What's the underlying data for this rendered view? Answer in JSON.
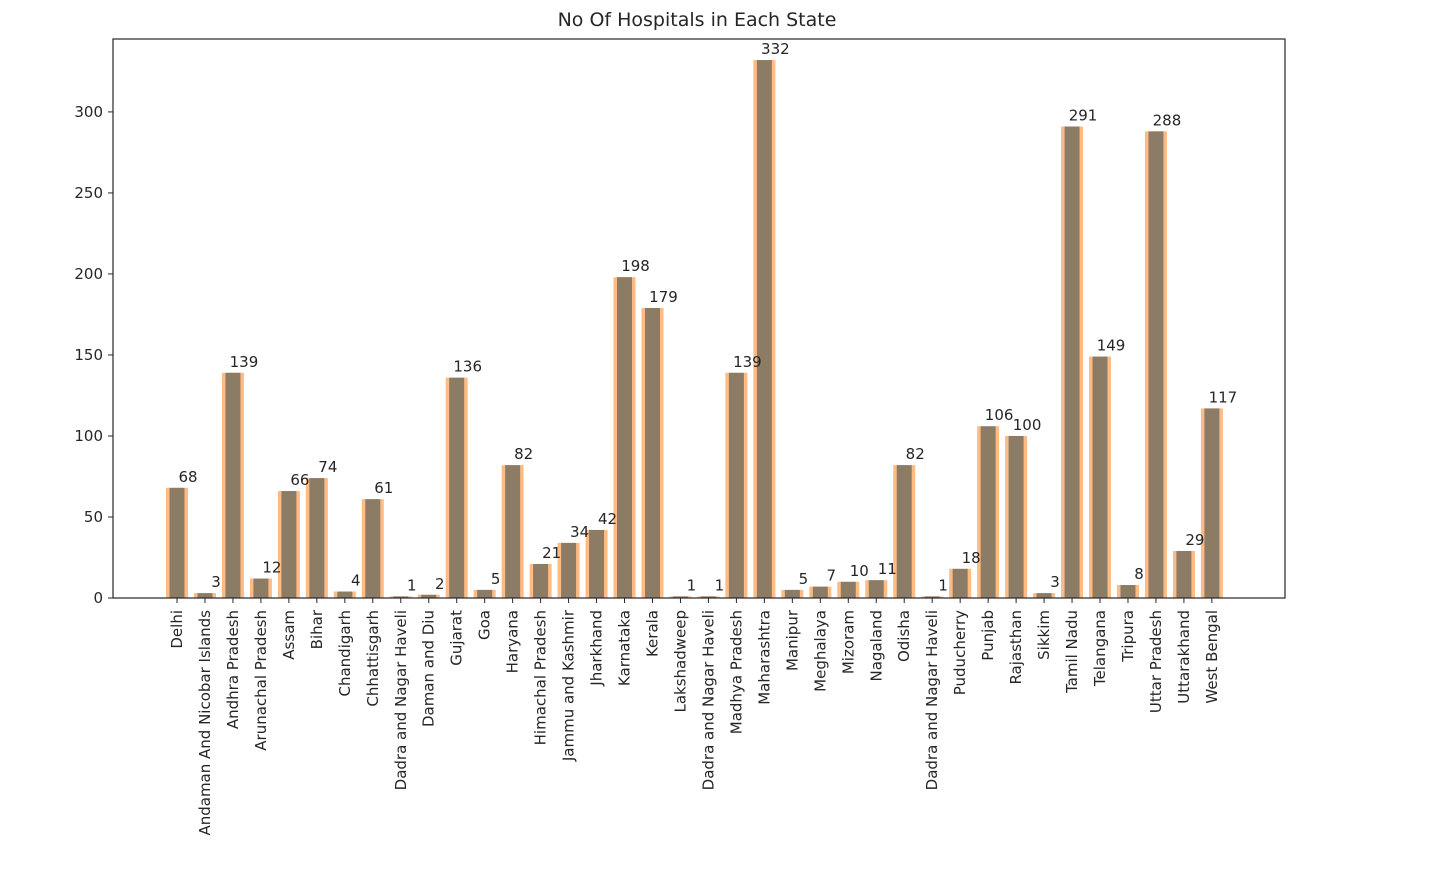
{
  "chart_data": {
    "type": "bar",
    "title": "No Of Hospitals in Each State",
    "xlabel": "",
    "ylabel": "",
    "ylim": [
      0,
      345
    ],
    "yticks": [
      0,
      50,
      100,
      150,
      200,
      250,
      300
    ],
    "grid": false,
    "legend": "none",
    "colors": {
      "bar_front": "#8c7c66",
      "bar_back": "#ffbb84",
      "axes": "#262626"
    },
    "categories": [
      "Delhi",
      "Andaman And Nicobar Islands",
      "Andhra Pradesh",
      "Arunachal Pradesh",
      "Assam",
      "Bihar",
      "Chandigarh",
      "Chhattisgarh",
      "Dadra and Nagar Haveli",
      "Daman and Diu",
      "Gujarat",
      "Goa",
      "Haryana",
      "Himachal Pradesh",
      "Jammu and Kashmir",
      "Jharkhand",
      "Karnataka",
      "Kerala",
      "Lakshadweep",
      "Dadra and Nagar Haveli",
      "Madhya Pradesh",
      "Maharashtra",
      "Manipur",
      "Meghalaya",
      "Mizoram",
      "Nagaland",
      "Odisha",
      "Dadra and Nagar Haveli",
      "Puducherry",
      "Punjab",
      "Rajasthan",
      "Sikkim",
      "Tamil Nadu",
      "Telangana",
      "Tripura",
      "Uttar Pradesh",
      "Uttarakhand",
      "West Bengal"
    ],
    "values": [
      68,
      3,
      139,
      12,
      66,
      74,
      4,
      61,
      1,
      2,
      136,
      5,
      82,
      21,
      34,
      42,
      198,
      179,
      1,
      1,
      139,
      332,
      5,
      7,
      10,
      11,
      82,
      1,
      18,
      106,
      100,
      3,
      291,
      149,
      8,
      288,
      29,
      117
    ]
  }
}
